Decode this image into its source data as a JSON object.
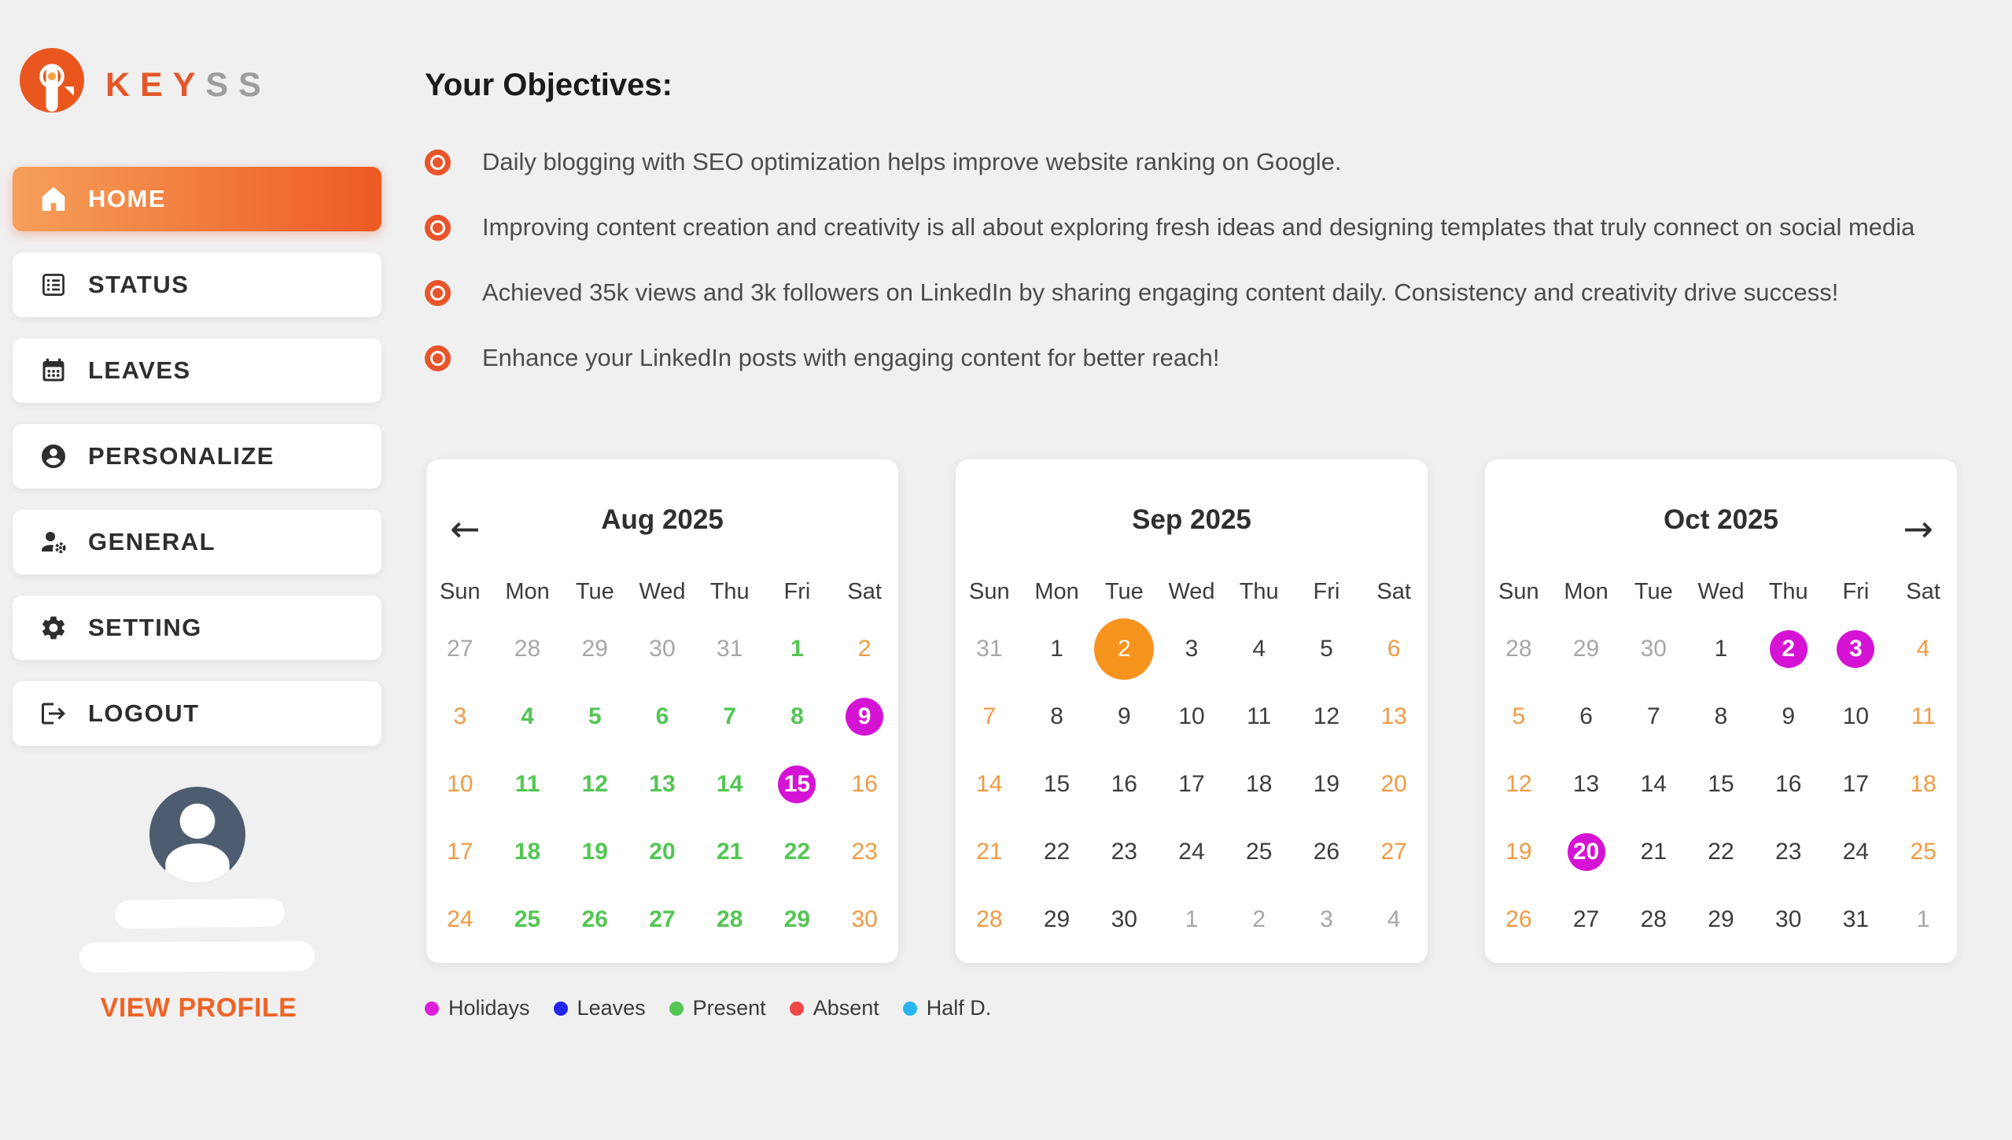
{
  "brand": {
    "primary": "KEY",
    "secondary": "SS"
  },
  "sidebar": {
    "items": [
      {
        "label": "HOME",
        "icon": "home-icon",
        "active": true
      },
      {
        "label": "STATUS",
        "icon": "status-icon",
        "active": false
      },
      {
        "label": "LEAVES",
        "icon": "calendar-icon",
        "active": false
      },
      {
        "label": "PERSONALIZE",
        "icon": "person-icon",
        "active": false
      },
      {
        "label": "GENERAL",
        "icon": "person-gear-icon",
        "active": false
      },
      {
        "label": "SETTING",
        "icon": "gear-icon",
        "active": false
      },
      {
        "label": "LOGOUT",
        "icon": "logout-icon",
        "active": false
      }
    ],
    "view_profile_label": "VIEW PROFILE"
  },
  "objectives": {
    "title": "Your Objectives:",
    "items": [
      "Daily blogging with SEO optimization helps improve website ranking on Google.",
      "Improving content creation and creativity is all about exploring fresh ideas and designing templates that truly connect on social media",
      "Achieved 35k views and 3k followers on LinkedIn by sharing engaging content daily. Consistency and creativity drive success!",
      "Enhance your LinkedIn posts with engaging content for better reach!"
    ]
  },
  "calendars": [
    {
      "title": "Aug 2025",
      "nav_left": "←",
      "nav_right": null,
      "weekdays": [
        "Sun",
        "Mon",
        "Tue",
        "Wed",
        "Thu",
        "Fri",
        "Sat"
      ],
      "days": [
        [
          "27",
          "muted"
        ],
        [
          "28",
          "muted"
        ],
        [
          "29",
          "muted"
        ],
        [
          "30",
          "muted"
        ],
        [
          "31",
          "muted"
        ],
        [
          "1",
          "present"
        ],
        [
          "2",
          "weekend"
        ],
        [
          "3",
          "weekend"
        ],
        [
          "4",
          "present"
        ],
        [
          "5",
          "present"
        ],
        [
          "6",
          "present"
        ],
        [
          "7",
          "present"
        ],
        [
          "8",
          "present"
        ],
        [
          "9",
          "holiday"
        ],
        [
          "10",
          "weekend"
        ],
        [
          "11",
          "present"
        ],
        [
          "12",
          "present"
        ],
        [
          "13",
          "present"
        ],
        [
          "14",
          "present"
        ],
        [
          "15",
          "holiday"
        ],
        [
          "16",
          "weekend"
        ],
        [
          "17",
          "weekend"
        ],
        [
          "18",
          "present"
        ],
        [
          "19",
          "present"
        ],
        [
          "20",
          "present"
        ],
        [
          "21",
          "present"
        ],
        [
          "22",
          "present"
        ],
        [
          "23",
          "weekend"
        ],
        [
          "24",
          "weekend"
        ],
        [
          "25",
          "present"
        ],
        [
          "26",
          "present"
        ],
        [
          "27",
          "present"
        ],
        [
          "28",
          "present"
        ],
        [
          "29",
          "present"
        ],
        [
          "30",
          "weekend"
        ]
      ]
    },
    {
      "title": "Sep 2025",
      "nav_left": null,
      "nav_right": null,
      "weekdays": [
        "Sun",
        "Mon",
        "Tue",
        "Wed",
        "Thu",
        "Fri",
        "Sat"
      ],
      "days": [
        [
          "31",
          "muted"
        ],
        [
          "1",
          "plain"
        ],
        [
          "2",
          "today"
        ],
        [
          "3",
          "plain"
        ],
        [
          "4",
          "plain"
        ],
        [
          "5",
          "plain"
        ],
        [
          "6",
          "weekend"
        ],
        [
          "7",
          "weekend"
        ],
        [
          "8",
          "plain"
        ],
        [
          "9",
          "plain"
        ],
        [
          "10",
          "plain"
        ],
        [
          "11",
          "plain"
        ],
        [
          "12",
          "plain"
        ],
        [
          "13",
          "weekend"
        ],
        [
          "14",
          "weekend"
        ],
        [
          "15",
          "plain"
        ],
        [
          "16",
          "plain"
        ],
        [
          "17",
          "plain"
        ],
        [
          "18",
          "plain"
        ],
        [
          "19",
          "plain"
        ],
        [
          "20",
          "weekend"
        ],
        [
          "21",
          "weekend"
        ],
        [
          "22",
          "plain"
        ],
        [
          "23",
          "plain"
        ],
        [
          "24",
          "plain"
        ],
        [
          "25",
          "plain"
        ],
        [
          "26",
          "plain"
        ],
        [
          "27",
          "weekend"
        ],
        [
          "28",
          "weekend"
        ],
        [
          "29",
          "plain"
        ],
        [
          "30",
          "plain"
        ],
        [
          "1",
          "muted"
        ],
        [
          "2",
          "muted"
        ],
        [
          "3",
          "muted"
        ],
        [
          "4",
          "muted"
        ]
      ]
    },
    {
      "title": "Oct 2025",
      "nav_left": null,
      "nav_right": "→",
      "weekdays": [
        "Sun",
        "Mon",
        "Tue",
        "Wed",
        "Thu",
        "Fri",
        "Sat"
      ],
      "days": [
        [
          "28",
          "muted"
        ],
        [
          "29",
          "muted"
        ],
        [
          "30",
          "muted"
        ],
        [
          "1",
          "plain"
        ],
        [
          "2",
          "holiday"
        ],
        [
          "3",
          "holiday"
        ],
        [
          "4",
          "weekend"
        ],
        [
          "5",
          "weekend"
        ],
        [
          "6",
          "plain"
        ],
        [
          "7",
          "plain"
        ],
        [
          "8",
          "plain"
        ],
        [
          "9",
          "plain"
        ],
        [
          "10",
          "plain"
        ],
        [
          "11",
          "weekend"
        ],
        [
          "12",
          "weekend"
        ],
        [
          "13",
          "plain"
        ],
        [
          "14",
          "plain"
        ],
        [
          "15",
          "plain"
        ],
        [
          "16",
          "plain"
        ],
        [
          "17",
          "plain"
        ],
        [
          "18",
          "weekend"
        ],
        [
          "19",
          "weekend"
        ],
        [
          "20",
          "holiday"
        ],
        [
          "21",
          "plain"
        ],
        [
          "22",
          "plain"
        ],
        [
          "23",
          "plain"
        ],
        [
          "24",
          "plain"
        ],
        [
          "25",
          "weekend"
        ],
        [
          "26",
          "weekend"
        ],
        [
          "27",
          "plain"
        ],
        [
          "28",
          "plain"
        ],
        [
          "29",
          "plain"
        ],
        [
          "30",
          "plain"
        ],
        [
          "31",
          "plain"
        ],
        [
          "1",
          "muted"
        ]
      ]
    }
  ],
  "legend": {
    "items": [
      {
        "label": "Holidays",
        "color": "#dd1fdd"
      },
      {
        "label": "Leaves",
        "color": "#2323f0"
      },
      {
        "label": "Present",
        "color": "#53c653"
      },
      {
        "label": "Absent",
        "color": "#f04747"
      },
      {
        "label": "Half D.",
        "color": "#29b5f2"
      }
    ]
  },
  "colors": {
    "brand_orange": "#e4572a",
    "brand_gray": "#9d9d9d",
    "gradient_start": "#f5a05a",
    "gradient_end": "#ee5a24",
    "bullet_orange": "#e8552a",
    "holiday": "#d513d5",
    "today": "#f7941e",
    "present": "#53c653",
    "weekend_date": "#f09a45",
    "plain_date": "#3d3d3d",
    "muted_date": "#a7a7a7",
    "avatar_bg": "#4d5c6e",
    "view_profile": "#ee6426"
  }
}
